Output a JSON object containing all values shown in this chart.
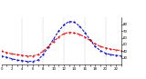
{
  "hours": [
    0,
    1,
    2,
    3,
    4,
    5,
    6,
    7,
    8,
    9,
    10,
    11,
    12,
    13,
    14,
    15,
    16,
    17,
    18,
    19,
    20,
    21,
    22,
    23
  ],
  "temp_red": [
    40,
    38,
    36,
    35,
    34,
    33,
    33,
    35,
    40,
    47,
    54,
    61,
    66,
    68,
    67,
    65,
    61,
    56,
    51,
    47,
    45,
    43,
    42,
    41
  ],
  "thsw_blue": [
    33,
    31,
    29,
    27,
    26,
    25,
    25,
    27,
    35,
    46,
    58,
    70,
    79,
    84,
    83,
    77,
    68,
    57,
    47,
    41,
    37,
    35,
    34,
    33
  ],
  "red_color": "#dd0000",
  "blue_color": "#0000cc",
  "bg_color": "#ffffff",
  "title_bg": "#111111",
  "ylim": [
    20,
    90
  ],
  "ytick_vals": [
    30,
    40,
    50,
    60,
    70,
    80
  ],
  "ytick_labels": [
    "30",
    "40",
    "50",
    "60",
    "70",
    "80"
  ],
  "xlim": [
    0,
    23
  ],
  "xtick_vals": [
    0,
    1,
    2,
    3,
    4,
    5,
    6,
    7,
    8,
    9,
    10,
    11,
    12,
    13,
    14,
    15,
    16,
    17,
    18,
    19,
    20,
    21,
    22,
    23
  ],
  "vgrid_x": [
    4,
    8,
    12,
    16,
    20
  ],
  "grid_color": "#999999",
  "title_fontsize": 3.2,
  "tick_fontsize": 2.8,
  "linewidth": 0.7,
  "markersize": 0.9
}
